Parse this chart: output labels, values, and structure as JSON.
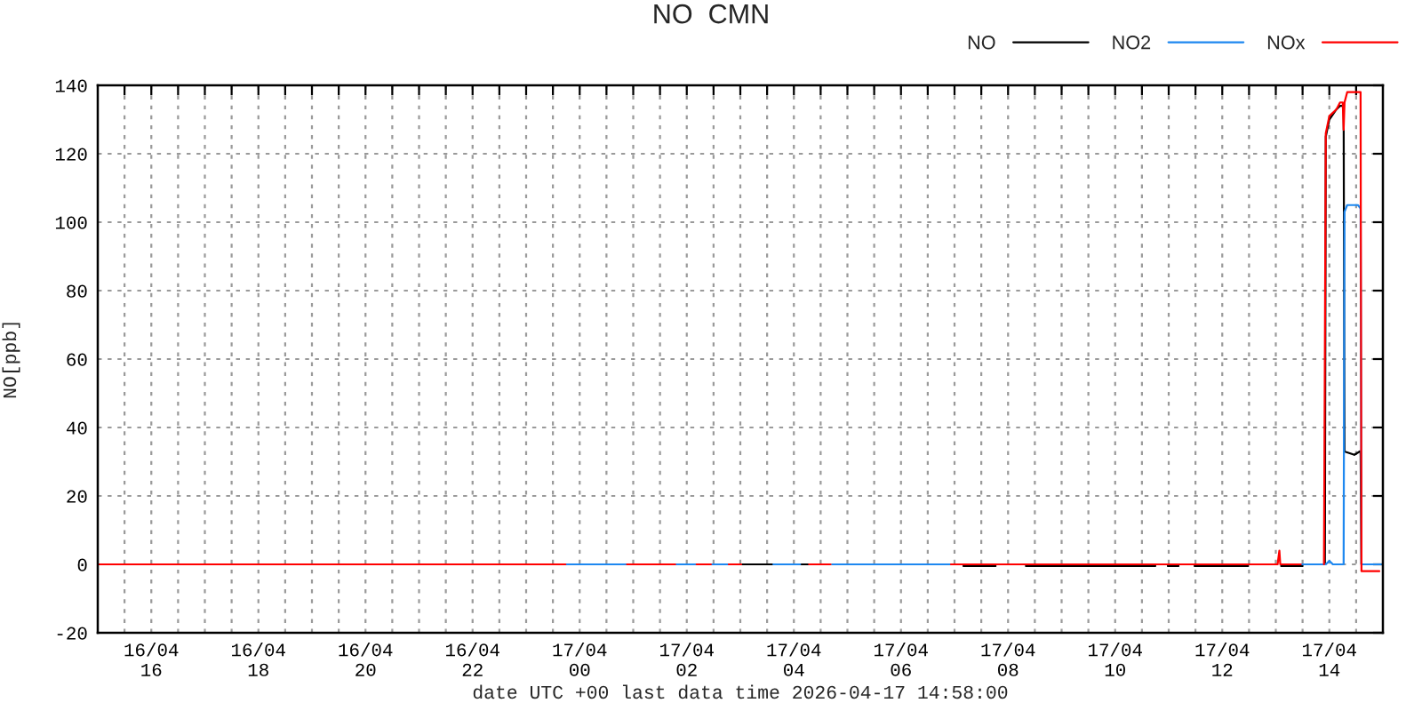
{
  "chart_data": {
    "type": "line",
    "title": "NO  CMN",
    "xlabel": "date UTC +00 last data time 2026-04-17 14:58:00",
    "ylabel": "NO[ppb]",
    "xlim": [
      "2026-04-16T15:00",
      "2026-04-17T15:00"
    ],
    "xticks": [
      {
        "value": "2026-04-16T15:30",
        "label": null
      },
      {
        "value": "2026-04-16T16:00",
        "label": "16/04\n16"
      },
      {
        "value": "2026-04-16T16:30",
        "label": null
      },
      {
        "value": "2026-04-16T17:00",
        "label": null
      },
      {
        "value": "2026-04-16T17:30",
        "label": null
      },
      {
        "value": "2026-04-16T18:00",
        "label": "16/04\n18"
      },
      {
        "value": "2026-04-16T18:30",
        "label": null
      },
      {
        "value": "2026-04-16T19:00",
        "label": null
      },
      {
        "value": "2026-04-16T19:30",
        "label": null
      },
      {
        "value": "2026-04-16T20:00",
        "label": "16/04\n20"
      },
      {
        "value": "2026-04-16T20:30",
        "label": null
      },
      {
        "value": "2026-04-16T21:00",
        "label": null
      },
      {
        "value": "2026-04-16T21:30",
        "label": null
      },
      {
        "value": "2026-04-16T22:00",
        "label": "16/04\n22"
      },
      {
        "value": "2026-04-16T22:30",
        "label": null
      },
      {
        "value": "2026-04-16T23:00",
        "label": null
      },
      {
        "value": "2026-04-16T23:30",
        "label": null
      },
      {
        "value": "2026-04-17T00:00",
        "label": "17/04\n00"
      },
      {
        "value": "2026-04-17T00:30",
        "label": null
      },
      {
        "value": "2026-04-17T01:00",
        "label": null
      },
      {
        "value": "2026-04-17T01:30",
        "label": null
      },
      {
        "value": "2026-04-17T02:00",
        "label": "17/04\n02"
      },
      {
        "value": "2026-04-17T02:30",
        "label": null
      },
      {
        "value": "2026-04-17T03:00",
        "label": null
      },
      {
        "value": "2026-04-17T03:30",
        "label": null
      },
      {
        "value": "2026-04-17T04:00",
        "label": "17/04\n04"
      },
      {
        "value": "2026-04-17T04:30",
        "label": null
      },
      {
        "value": "2026-04-17T05:00",
        "label": null
      },
      {
        "value": "2026-04-17T05:30",
        "label": null
      },
      {
        "value": "2026-04-17T06:00",
        "label": "17/04\n06"
      },
      {
        "value": "2026-04-17T06:30",
        "label": null
      },
      {
        "value": "2026-04-17T07:00",
        "label": null
      },
      {
        "value": "2026-04-17T07:30",
        "label": null
      },
      {
        "value": "2026-04-17T08:00",
        "label": "17/04\n08"
      },
      {
        "value": "2026-04-17T08:30",
        "label": null
      },
      {
        "value": "2026-04-17T09:00",
        "label": null
      },
      {
        "value": "2026-04-17T09:30",
        "label": null
      },
      {
        "value": "2026-04-17T10:00",
        "label": "17/04\n10"
      },
      {
        "value": "2026-04-17T10:30",
        "label": null
      },
      {
        "value": "2026-04-17T11:00",
        "label": null
      },
      {
        "value": "2026-04-17T11:30",
        "label": null
      },
      {
        "value": "2026-04-17T12:00",
        "label": "17/04\n12"
      },
      {
        "value": "2026-04-17T12:30",
        "label": null
      },
      {
        "value": "2026-04-17T13:00",
        "label": null
      },
      {
        "value": "2026-04-17T13:30",
        "label": null
      },
      {
        "value": "2026-04-17T14:00",
        "label": "17/04\n14"
      },
      {
        "value": "2026-04-17T14:30",
        "label": null
      }
    ],
    "ylim": [
      -20,
      140
    ],
    "yticks": [
      -20,
      0,
      20,
      40,
      60,
      80,
      100,
      120,
      140
    ],
    "grid": true,
    "legend": "top right",
    "series": [
      {
        "name": "NO",
        "color": "#000000",
        "x": [
          "2026-04-17T03:01",
          "2026-04-17T03:37",
          "2026-04-17T03:50",
          "2026-04-17T04:07",
          "2026-04-17T04:17",
          "2026-04-17T05:50",
          "2026-04-17T07:10",
          "2026-04-17T07:46",
          "2026-04-17T08:00",
          "2026-04-17T08:20",
          "2026-04-17T10:45",
          "2026-04-17T10:50",
          "2026-04-17T10:59",
          "2026-04-17T11:11",
          "2026-04-17T11:20",
          "2026-04-17T11:29",
          "2026-04-17T12:29",
          "2026-04-17T12:45",
          "2026-04-17T13:06",
          "2026-04-17T13:30",
          "2026-04-17T13:45",
          "2026-04-17T13:55",
          "2026-04-17T13:56",
          "2026-04-17T14:00",
          "2026-04-17T14:08",
          "2026-04-17T14:12",
          "2026-04-17T14:16",
          "2026-04-17T14:17",
          "2026-04-17T14:28",
          "2026-04-17T14:34",
          "2026-04-17T14:35",
          "2026-04-17T14:36"
        ],
        "values": [
          0,
          0,
          null,
          0,
          0,
          null,
          -0.5,
          -0.5,
          null,
          -0.5,
          -0.5,
          null,
          -0.5,
          -0.5,
          null,
          -0.5,
          -0.5,
          null,
          -0.5,
          -0.5,
          null,
          0,
          125,
          130,
          133,
          134,
          134,
          33,
          32,
          33,
          33,
          0
        ]
      },
      {
        "name": "NO2",
        "color": "#1e88f0",
        "x": [
          "2026-04-16T23:44",
          "2026-04-17T00:53",
          "2026-04-17T01:20",
          "2026-04-17T01:47",
          "2026-04-17T02:11",
          "2026-04-17T02:20",
          "2026-04-17T02:27",
          "2026-04-17T02:47",
          "2026-04-17T03:20",
          "2026-04-17T03:37",
          "2026-04-17T04:07",
          "2026-04-17T04:30",
          "2026-04-17T04:43",
          "2026-04-17T06:56",
          "2026-04-17T10:00",
          "2026-04-17T13:28",
          "2026-04-17T13:56",
          "2026-04-17T14:00",
          "2026-04-17T14:04",
          "2026-04-17T14:16",
          "2026-04-17T14:17",
          "2026-04-17T14:20",
          "2026-04-17T14:32",
          "2026-04-17T14:35",
          "2026-04-17T14:36",
          "2026-04-17T14:58"
        ],
        "values": [
          0,
          0,
          null,
          0,
          0,
          null,
          0,
          0,
          null,
          0,
          0,
          null,
          0,
          0,
          null,
          0,
          0,
          1,
          0,
          0,
          103,
          105,
          105,
          104,
          0,
          0
        ]
      },
      {
        "name": "NOx",
        "color": "#ff0000",
        "x": [
          "2026-04-16T15:00",
          "2026-04-16T23:44",
          "2026-04-17T00:20",
          "2026-04-17T00:53",
          "2026-04-17T01:47",
          "2026-04-17T02:00",
          "2026-04-17T02:11",
          "2026-04-17T02:27",
          "2026-04-17T02:35",
          "2026-04-17T02:47",
          "2026-04-17T03:01",
          "2026-04-17T03:30",
          "2026-04-17T04:17",
          "2026-04-17T04:41",
          "2026-04-17T05:30",
          "2026-04-17T06:56",
          "2026-04-17T13:02",
          "2026-04-17T13:04",
          "2026-04-17T13:05",
          "2026-04-17T13:28",
          "2026-04-17T13:40",
          "2026-04-17T13:54",
          "2026-04-17T13:56",
          "2026-04-17T14:00",
          "2026-04-17T14:08",
          "2026-04-17T14:12",
          "2026-04-17T14:15",
          "2026-04-17T14:16",
          "2026-04-17T14:17",
          "2026-04-17T14:20",
          "2026-04-17T14:35",
          "2026-04-17T14:36",
          "2026-04-17T14:56"
        ],
        "values": [
          0,
          0,
          null,
          0,
          0,
          null,
          0,
          0,
          null,
          0,
          0,
          null,
          0,
          0,
          null,
          0,
          0,
          4,
          0,
          0,
          null,
          0,
          126,
          131,
          133,
          135,
          135,
          127,
          135,
          138,
          138,
          -2,
          -2
        ]
      }
    ]
  }
}
